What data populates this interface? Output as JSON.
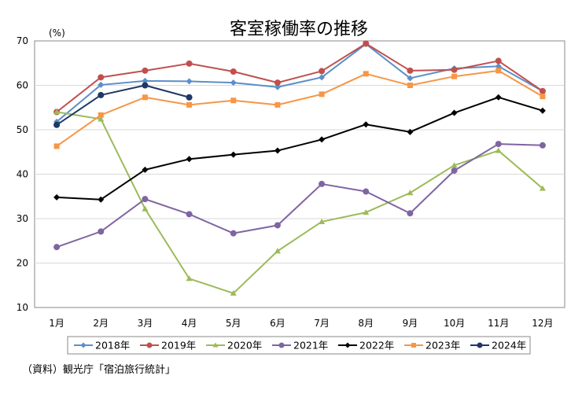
{
  "chart_data": {
    "type": "line",
    "title": "客室稼働率の推移",
    "unit_label": "(%)",
    "xlabel": "",
    "ylabel": "",
    "ylim": [
      10,
      70
    ],
    "yticks": [
      10,
      20,
      30,
      40,
      50,
      60,
      70
    ],
    "grid": true,
    "legend_position": "bottom",
    "categories": [
      "1月",
      "2月",
      "3月",
      "4月",
      "5月",
      "6月",
      "7月",
      "8月",
      "9月",
      "10月",
      "11月",
      "12月"
    ],
    "series": [
      {
        "name": "2018年",
        "color": "#5B8FC9",
        "marker": "diamond",
        "values": [
          51.8,
          60.1,
          61.0,
          60.9,
          60.6,
          59.6,
          61.8,
          69.3,
          61.6,
          63.8,
          64.3,
          58.7
        ]
      },
      {
        "name": "2019年",
        "color": "#C0504D",
        "marker": "circle",
        "values": [
          54.0,
          61.8,
          63.3,
          64.9,
          63.1,
          60.6,
          63.2,
          69.4,
          63.3,
          63.5,
          65.5,
          58.7
        ]
      },
      {
        "name": "2020年",
        "color": "#9BBB59",
        "marker": "triangle",
        "values": [
          54.0,
          52.4,
          32.2,
          16.5,
          13.2,
          22.7,
          29.3,
          31.4,
          35.8,
          42.0,
          45.3,
          36.8
        ]
      },
      {
        "name": "2021年",
        "color": "#8064A2",
        "marker": "circle",
        "values": [
          23.6,
          27.1,
          34.4,
          31.0,
          26.7,
          28.5,
          37.8,
          36.1,
          31.2,
          40.8,
          46.8,
          46.5
        ]
      },
      {
        "name": "2022年",
        "color": "#000000",
        "marker": "diamond",
        "values": [
          34.8,
          34.3,
          41.0,
          43.4,
          44.4,
          45.3,
          47.8,
          51.2,
          49.5,
          53.8,
          57.3,
          54.3
        ]
      },
      {
        "name": "2023年",
        "color": "#F79646",
        "marker": "square",
        "values": [
          46.3,
          53.3,
          57.3,
          55.6,
          56.6,
          55.6,
          58.0,
          62.6,
          60.0,
          62.0,
          63.3,
          57.5
        ]
      },
      {
        "name": "2024年",
        "color": "#1F3864",
        "marker": "circle",
        "values": [
          51.1,
          57.8,
          60.0,
          57.3,
          null,
          null,
          null,
          null,
          null,
          null,
          null,
          null
        ]
      }
    ],
    "source": "（資料）観光庁「宿泊旅行統計」"
  }
}
